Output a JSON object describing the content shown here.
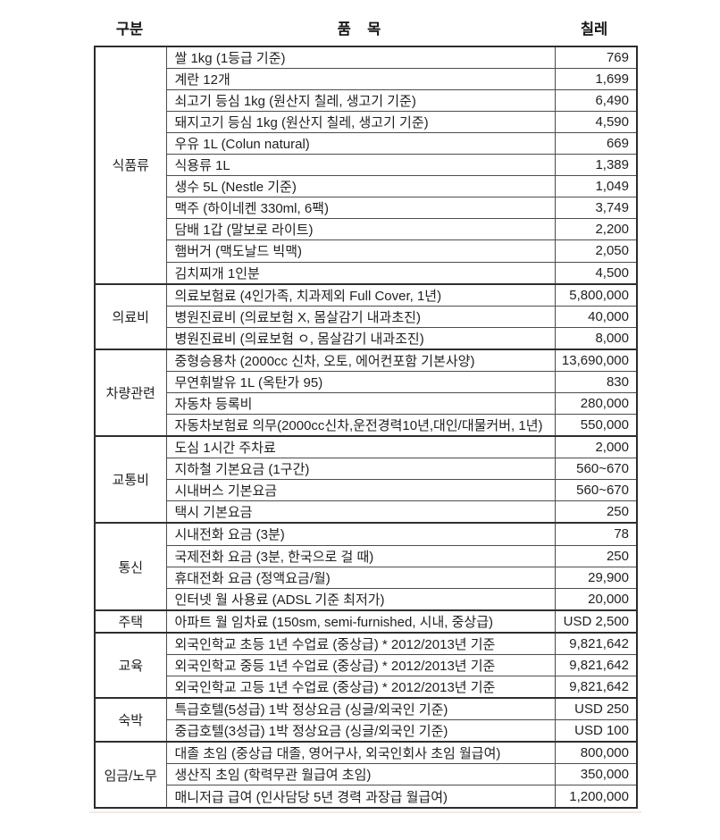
{
  "header": {
    "category": "구분",
    "item": "품    목",
    "value": "칠레"
  },
  "colors": {
    "outer_border": "#2b2b2b",
    "inner_border": "#4d4d4d",
    "text": "#1f1f1f",
    "background": "#ffffff"
  },
  "table": {
    "type": "table",
    "groups": [
      {
        "category": "식품류",
        "rows": [
          {
            "item": "쌀 1kg (1등급 기준)",
            "value": "769"
          },
          {
            "item": "계란 12개",
            "value": "1,699"
          },
          {
            "item": "쇠고기 등심 1kg (원산지 칠레, 생고기 기준)",
            "value": "6,490"
          },
          {
            "item": "돼지고기 등심 1kg (원산지 칠레, 생고기 기준)",
            "value": "4,590"
          },
          {
            "item": "우유 1L (Colun natural)",
            "value": "669"
          },
          {
            "item": "식용류 1L",
            "value": "1,389"
          },
          {
            "item": "생수 5L (Nestle 기준)",
            "value": "1,049"
          },
          {
            "item": "맥주 (하이네켄 330ml, 6팩)",
            "value": "3,749"
          },
          {
            "item": "담배 1갑 (말보로 라이트)",
            "value": "2,200"
          },
          {
            "item": "햄버거 (맥도날드 빅맥)",
            "value": "2,050"
          },
          {
            "item": "김치찌개 1인분",
            "value": "4,500"
          }
        ]
      },
      {
        "category": "의료비",
        "rows": [
          {
            "item": "의료보험료 (4인가족, 치과제외 Full Cover, 1년)",
            "value": "5,800,000"
          },
          {
            "item": "병원진료비 (의료보험 X, 몸살감기 내과초진)",
            "value": "40,000"
          },
          {
            "item": "병원진료비 (의료보험 ㅇ, 몸살감기 내과조진)",
            "value": "8,000"
          }
        ]
      },
      {
        "category": "차량관련",
        "rows": [
          {
            "item": "중형승용차 (2000cc 신차, 오토, 에어컨포함 기본사양)",
            "value": "13,690,000"
          },
          {
            "item": "무연휘발유 1L (옥탄가 95)",
            "value": "830"
          },
          {
            "item": "자동차 등록비",
            "value": "280,000"
          },
          {
            "item": "자동차보험료 의무(2000cc신차,운전경력10년,대인/대물커버, 1년)",
            "value": "550,000"
          }
        ]
      },
      {
        "category": "교통비",
        "rows": [
          {
            "item": "도심 1시간 주차료",
            "value": "2,000"
          },
          {
            "item": "지하철 기본요금 (1구간)",
            "value": "560~670"
          },
          {
            "item": "시내버스 기본요금",
            "value": "560~670"
          },
          {
            "item": "택시 기본요금",
            "value": "250"
          }
        ]
      },
      {
        "category": "통신",
        "rows": [
          {
            "item": "시내전화 요금 (3분)",
            "value": "78"
          },
          {
            "item": "국제전화 요금 (3분, 한국으로 걸 때)",
            "value": "250"
          },
          {
            "item": "휴대전화 요금 (정액요금/월)",
            "value": "29,900"
          },
          {
            "item": "인터넷 월 사용료 (ADSL 기준 최저가)",
            "value": "20,000"
          }
        ]
      },
      {
        "category": "주택",
        "rows": [
          {
            "item": "아파트 월 임차료 (150sm, semi-furnished, 시내, 중상급)",
            "value": "USD 2,500"
          }
        ]
      },
      {
        "category": "교육",
        "rows": [
          {
            "item": "외국인학교 초등 1년 수업료 (중상급) * 2012/2013년 기준",
            "value": "9,821,642"
          },
          {
            "item": "외국인학교 중등 1년 수업료 (중상급) * 2012/2013년 기준",
            "value": "9,821,642"
          },
          {
            "item": "외국인학교 고등 1년 수업료 (중상급) * 2012/2013년 기준",
            "value": "9,821,642"
          }
        ]
      },
      {
        "category": "숙박",
        "rows": [
          {
            "item": "특급호텔(5성급) 1박 정상요금 (싱글/외국인 기준)",
            "value": "USD 250"
          },
          {
            "item": "중급호텔(3성급) 1박 정상요금 (싱글/외국인 기준)",
            "value": "USD 100"
          }
        ]
      },
      {
        "category": "임금/노무",
        "rows": [
          {
            "item": "대졸 초임 (중상급 대졸, 영어구사, 외국인회사 초임 월급여)",
            "value": "800,000"
          },
          {
            "item": "생산직 초임 (학력무관 월급여 초임)",
            "value": "350,000"
          },
          {
            "item": "매니저급 급여 (인사담당 5년 경력 과장급 월급여)",
            "value": "1,200,000"
          }
        ]
      }
    ]
  }
}
